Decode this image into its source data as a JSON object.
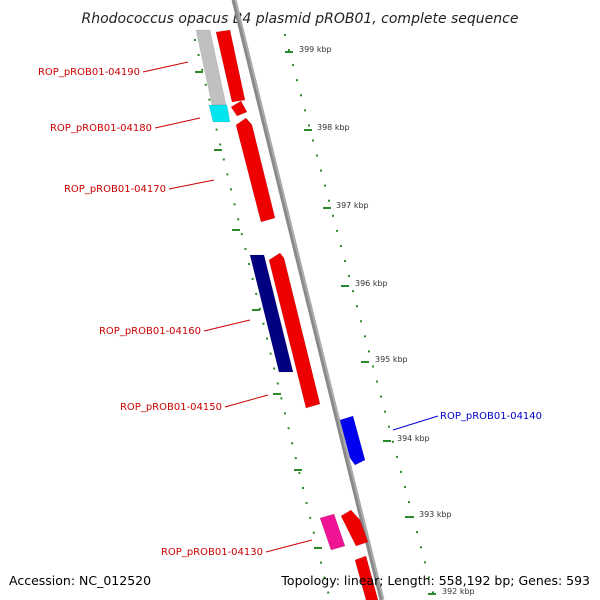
{
  "title": "Rhodococcus opacus B4 plasmid pROB01, complete sequence",
  "accession": "Accession: NC_012520",
  "summary": "Topology: linear; Length: 558,192 bp; Genes: 593",
  "colors": {
    "label_default": "#cc0000",
    "label_highlight": "#0000cc",
    "backbone": "#888888",
    "tick": "#2a8a2a"
  },
  "scale_labels": [
    {
      "kbp": 399,
      "label": "399 kbp"
    },
    {
      "kbp": 398,
      "label": "398 kbp"
    },
    {
      "kbp": 397,
      "label": "397 kbp"
    },
    {
      "kbp": 396,
      "label": "396 kbp"
    },
    {
      "kbp": 395,
      "label": "395 kbp"
    },
    {
      "kbp": 394,
      "label": "394 kbp"
    },
    {
      "kbp": 393,
      "label": "393 kbp"
    },
    {
      "kbp": 392,
      "label": "392 kbp"
    }
  ],
  "gene_labels": [
    {
      "text": "ROP_pROB01-04190",
      "color": "#cc0000"
    },
    {
      "text": "ROP_pROB01-04180",
      "color": "#cc0000"
    },
    {
      "text": "ROP_pROB01-04170",
      "color": "#cc0000"
    },
    {
      "text": "ROP_pROB01-04160",
      "color": "#cc0000"
    },
    {
      "text": "ROP_pROB01-04150",
      "color": "#cc0000"
    },
    {
      "text": "ROP_pROB01-04140",
      "color": "#0000cc"
    },
    {
      "text": "ROP_pROB01-04130",
      "color": "#cc0000"
    }
  ],
  "features": [
    {
      "name": "gene-block-04190-gray",
      "color": "#c0c0c0"
    },
    {
      "name": "gene-block-04190-red",
      "color": "#ee0000"
    },
    {
      "name": "gene-block-04180-cyan",
      "color": "#00e5ee"
    },
    {
      "name": "gene-block-04180-red",
      "color": "#ee0000"
    },
    {
      "name": "gene-block-04170-red",
      "color": "#ee0000"
    },
    {
      "name": "gene-block-04160-navy",
      "color": "#000080"
    },
    {
      "name": "gene-block-04160-red",
      "color": "#ee0000"
    },
    {
      "name": "gene-block-04150-red",
      "color": "#ee0000"
    },
    {
      "name": "gene-block-04140-blue",
      "color": "#0000ee"
    },
    {
      "name": "gene-block-04130-pink",
      "color": "#ee1493"
    },
    {
      "name": "gene-block-04130-red",
      "color": "#ee0000"
    },
    {
      "name": "gene-block-bottom-red",
      "color": "#ee0000"
    }
  ]
}
